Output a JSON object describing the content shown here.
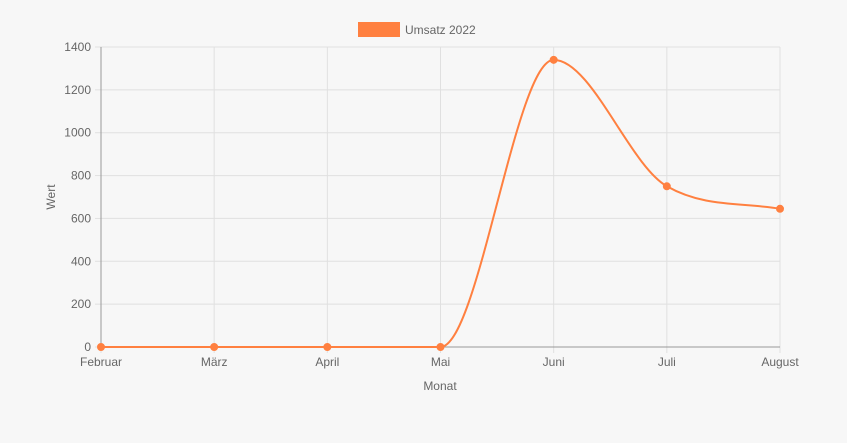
{
  "colors": {
    "series": "#ff8040",
    "grid": "#e0e0e0",
    "axis": "#999999",
    "text": "#666666",
    "background": "#f7f7f7"
  },
  "chart_data": {
    "type": "line",
    "categories": [
      "Februar",
      "März",
      "April",
      "Mai",
      "Juni",
      "Juli",
      "August"
    ],
    "series": [
      {
        "name": "Umsatz 2022",
        "values": [
          0,
          0,
          0,
          0,
          1340,
          750,
          645
        ]
      }
    ],
    "xlabel": "Monat",
    "ylabel": "Wert",
    "ylim": [
      0,
      1400
    ],
    "yticks": [
      "0",
      "200",
      "400",
      "600",
      "800",
      "1000",
      "1200",
      "1400"
    ],
    "grid": true,
    "legend": "top",
    "curve": "smooth"
  }
}
